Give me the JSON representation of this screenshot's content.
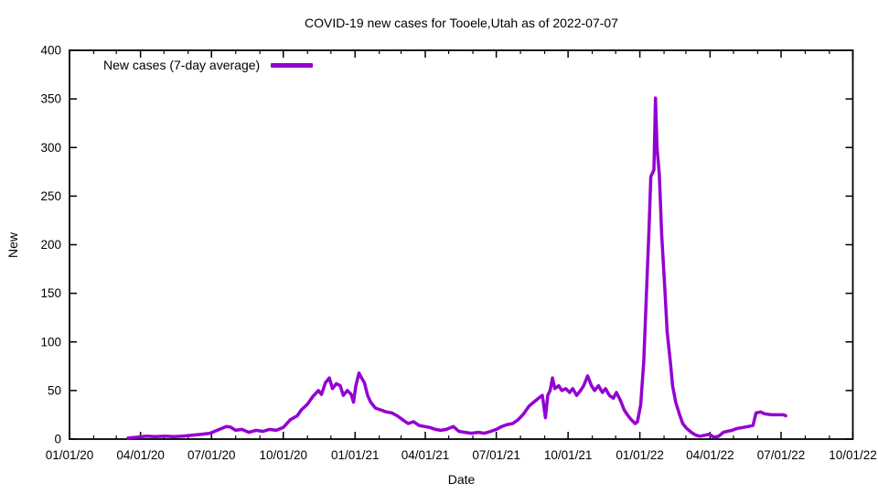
{
  "chart_data": {
    "type": "line",
    "title": "COVID-19 new cases for Tooele,Utah as of 2022-07-07",
    "xlabel": "Date",
    "ylabel": "New",
    "legend": [
      {
        "name": "New cases (7-day average)",
        "color": "#9400D3"
      }
    ],
    "legend_position": "top-left-inside",
    "grid": false,
    "x_domain": [
      "2020-01-01",
      "2022-10-01"
    ],
    "ylim": [
      0,
      400
    ],
    "x_ticks": [
      {
        "date": "2020-01-01",
        "label": "01/01/20"
      },
      {
        "date": "2020-04-01",
        "label": "04/01/20"
      },
      {
        "date": "2020-07-01",
        "label": "07/01/20"
      },
      {
        "date": "2020-10-01",
        "label": "10/01/20"
      },
      {
        "date": "2021-01-01",
        "label": "01/01/21"
      },
      {
        "date": "2021-04-01",
        "label": "04/01/21"
      },
      {
        "date": "2021-07-01",
        "label": "07/01/21"
      },
      {
        "date": "2021-10-01",
        "label": "10/01/21"
      },
      {
        "date": "2022-01-01",
        "label": "01/01/22"
      },
      {
        "date": "2022-04-01",
        "label": "04/01/22"
      },
      {
        "date": "2022-07-01",
        "label": "07/01/22"
      },
      {
        "date": "2022-10-01",
        "label": "10/01/22"
      }
    ],
    "y_ticks": [
      {
        "value": 0,
        "label": "0"
      },
      {
        "value": 50,
        "label": "50"
      },
      {
        "value": 100,
        "label": "100"
      },
      {
        "value": 150,
        "label": "150"
      },
      {
        "value": 200,
        "label": "200"
      },
      {
        "value": 250,
        "label": "250"
      },
      {
        "value": 300,
        "label": "300"
      },
      {
        "value": 350,
        "label": "350"
      },
      {
        "value": 400,
        "label": "400"
      }
    ],
    "series": [
      {
        "name": "New cases (7-day average)",
        "color": "#9400D3",
        "points": [
          [
            "2020-03-16",
            1
          ],
          [
            "2020-03-28",
            2
          ],
          [
            "2020-04-08",
            3
          ],
          [
            "2020-04-20",
            2.5
          ],
          [
            "2020-05-02",
            3
          ],
          [
            "2020-05-14",
            2.5
          ],
          [
            "2020-05-25",
            3
          ],
          [
            "2020-06-06",
            4
          ],
          [
            "2020-06-18",
            5
          ],
          [
            "2020-06-29",
            6
          ],
          [
            "2020-07-11",
            10
          ],
          [
            "2020-07-20",
            13
          ],
          [
            "2020-07-25",
            12.5
          ],
          [
            "2020-08-01",
            9
          ],
          [
            "2020-08-09",
            10
          ],
          [
            "2020-08-18",
            7
          ],
          [
            "2020-08-27",
            9
          ],
          [
            "2020-09-05",
            8
          ],
          [
            "2020-09-13",
            10
          ],
          [
            "2020-09-22",
            9
          ],
          [
            "2020-10-01",
            12
          ],
          [
            "2020-10-10",
            20
          ],
          [
            "2020-10-19",
            24
          ],
          [
            "2020-10-24",
            30
          ],
          [
            "2020-11-01",
            36
          ],
          [
            "2020-11-08",
            44
          ],
          [
            "2020-11-15",
            50
          ],
          [
            "2020-11-19",
            46
          ],
          [
            "2020-11-24",
            58
          ],
          [
            "2020-11-29",
            63
          ],
          [
            "2020-12-03",
            52
          ],
          [
            "2020-12-08",
            57
          ],
          [
            "2020-12-13",
            55
          ],
          [
            "2020-12-17",
            45
          ],
          [
            "2020-12-22",
            50
          ],
          [
            "2020-12-27",
            46
          ],
          [
            "2020-12-30",
            38
          ],
          [
            "2021-01-02",
            55
          ],
          [
            "2021-01-06",
            68
          ],
          [
            "2021-01-10",
            62
          ],
          [
            "2021-01-13",
            58
          ],
          [
            "2021-01-17",
            45
          ],
          [
            "2021-01-21",
            38
          ],
          [
            "2021-01-27",
            32
          ],
          [
            "2021-02-03",
            30
          ],
          [
            "2021-02-10",
            28
          ],
          [
            "2021-02-17",
            27
          ],
          [
            "2021-02-24",
            24
          ],
          [
            "2021-03-03",
            20
          ],
          [
            "2021-03-10",
            16
          ],
          [
            "2021-03-17",
            18
          ],
          [
            "2021-03-24",
            14
          ],
          [
            "2021-03-31",
            13
          ],
          [
            "2021-04-07",
            12
          ],
          [
            "2021-04-14",
            10
          ],
          [
            "2021-04-21",
            9
          ],
          [
            "2021-04-28",
            10
          ],
          [
            "2021-05-07",
            13
          ],
          [
            "2021-05-14",
            8
          ],
          [
            "2021-05-22",
            7
          ],
          [
            "2021-05-30",
            6
          ],
          [
            "2021-06-08",
            7
          ],
          [
            "2021-06-16",
            6
          ],
          [
            "2021-06-24",
            8
          ],
          [
            "2021-07-01",
            10
          ],
          [
            "2021-07-08",
            13
          ],
          [
            "2021-07-15",
            15
          ],
          [
            "2021-07-22",
            16
          ],
          [
            "2021-07-29",
            20
          ],
          [
            "2021-08-05",
            26
          ],
          [
            "2021-08-12",
            34
          ],
          [
            "2021-08-18",
            38
          ],
          [
            "2021-08-24",
            42
          ],
          [
            "2021-08-29",
            45
          ],
          [
            "2021-09-02",
            22
          ],
          [
            "2021-09-05",
            45
          ],
          [
            "2021-09-08",
            50
          ],
          [
            "2021-09-11",
            63
          ],
          [
            "2021-09-14",
            52
          ],
          [
            "2021-09-19",
            55
          ],
          [
            "2021-09-23",
            50
          ],
          [
            "2021-09-28",
            52
          ],
          [
            "2021-10-03",
            48
          ],
          [
            "2021-10-07",
            52
          ],
          [
            "2021-10-12",
            45
          ],
          [
            "2021-10-17",
            50
          ],
          [
            "2021-10-21",
            55
          ],
          [
            "2021-10-26",
            65
          ],
          [
            "2021-10-31",
            55
          ],
          [
            "2021-11-04",
            50
          ],
          [
            "2021-11-09",
            55
          ],
          [
            "2021-11-14",
            48
          ],
          [
            "2021-11-18",
            52
          ],
          [
            "2021-11-23",
            45
          ],
          [
            "2021-11-28",
            42
          ],
          [
            "2021-12-02",
            48
          ],
          [
            "2021-12-07",
            40
          ],
          [
            "2021-12-12",
            30
          ],
          [
            "2021-12-16",
            25
          ],
          [
            "2021-12-21",
            20
          ],
          [
            "2021-12-26",
            16
          ],
          [
            "2021-12-29",
            18
          ],
          [
            "2022-01-02",
            35
          ],
          [
            "2022-01-06",
            80
          ],
          [
            "2022-01-09",
            140
          ],
          [
            "2022-01-13",
            220
          ],
          [
            "2022-01-15",
            270
          ],
          [
            "2022-01-19",
            277
          ],
          [
            "2022-01-21",
            351
          ],
          [
            "2022-01-23",
            300
          ],
          [
            "2022-01-26",
            272
          ],
          [
            "2022-01-29",
            210
          ],
          [
            "2022-02-02",
            155
          ],
          [
            "2022-02-05",
            110
          ],
          [
            "2022-02-09",
            80
          ],
          [
            "2022-02-12",
            55
          ],
          [
            "2022-02-16",
            38
          ],
          [
            "2022-02-21",
            25
          ],
          [
            "2022-02-25",
            16
          ],
          [
            "2022-03-02",
            11
          ],
          [
            "2022-03-08",
            7
          ],
          [
            "2022-03-14",
            4
          ],
          [
            "2022-03-19",
            3
          ],
          [
            "2022-03-25",
            4
          ],
          [
            "2022-03-31",
            5
          ],
          [
            "2022-04-06",
            2
          ],
          [
            "2022-04-12",
            3
          ],
          [
            "2022-04-18",
            7
          ],
          [
            "2022-04-23",
            8
          ],
          [
            "2022-04-29",
            9
          ],
          [
            "2022-05-06",
            11
          ],
          [
            "2022-05-13",
            12
          ],
          [
            "2022-05-20",
            13
          ],
          [
            "2022-05-26",
            14
          ],
          [
            "2022-05-30",
            27
          ],
          [
            "2022-06-05",
            28
          ],
          [
            "2022-06-10",
            26
          ],
          [
            "2022-06-19",
            25
          ],
          [
            "2022-06-27",
            25
          ],
          [
            "2022-07-04",
            25
          ],
          [
            "2022-07-07",
            24
          ]
        ]
      }
    ]
  },
  "frame_color": "#000000",
  "background_color": "#ffffff"
}
